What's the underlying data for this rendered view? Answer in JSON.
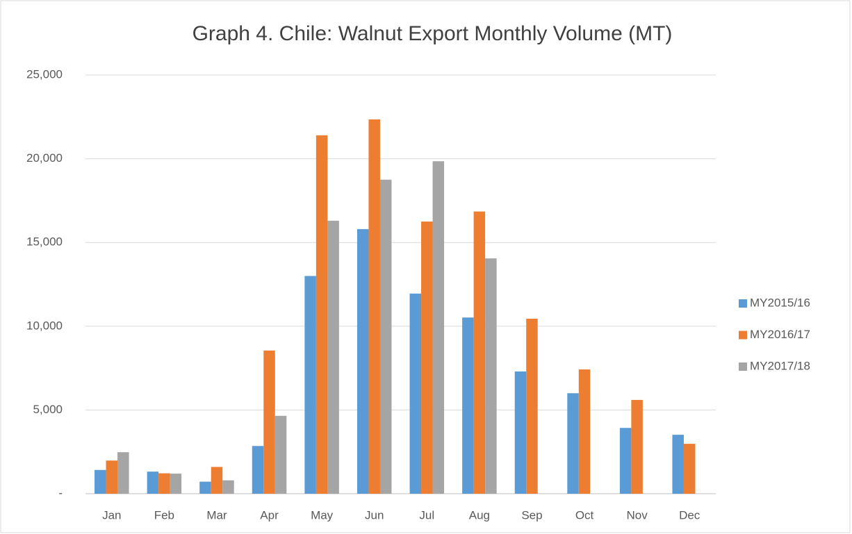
{
  "chart_data": {
    "type": "bar",
    "title": "Graph 4. Chile: Walnut Export Monthly Volume (MT)",
    "categories": [
      "Jan",
      "Feb",
      "Mar",
      "Apr",
      "May",
      "Jun",
      "Jul",
      "Aug",
      "Sep",
      "Oct",
      "Nov",
      "Dec"
    ],
    "series": [
      {
        "name": "MY2015/16",
        "color": "#5b9bd5",
        "values": [
          1420,
          1320,
          720,
          2850,
          13000,
          15800,
          11950,
          10520,
          7300,
          6000,
          3930,
          3520
        ]
      },
      {
        "name": "MY2016/17",
        "color": "#ed7d31",
        "values": [
          1980,
          1220,
          1600,
          8550,
          21400,
          22350,
          16250,
          16850,
          10450,
          7420,
          5600,
          2980
        ]
      },
      {
        "name": "MY2017/18",
        "color": "#a5a5a5",
        "values": [
          2480,
          1200,
          800,
          4650,
          16300,
          18750,
          19850,
          14050,
          null,
          null,
          null,
          null
        ]
      }
    ],
    "ylim": [
      0,
      25000
    ],
    "yticks": [
      {
        "value": 0,
        "label": "-"
      },
      {
        "value": 5000,
        "label": "5,000"
      },
      {
        "value": 10000,
        "label": "10,000"
      },
      {
        "value": 15000,
        "label": "15,000"
      },
      {
        "value": 20000,
        "label": "20,000"
      },
      {
        "value": 25000,
        "label": "25,000"
      }
    ],
    "grid": true,
    "legend": "right"
  }
}
